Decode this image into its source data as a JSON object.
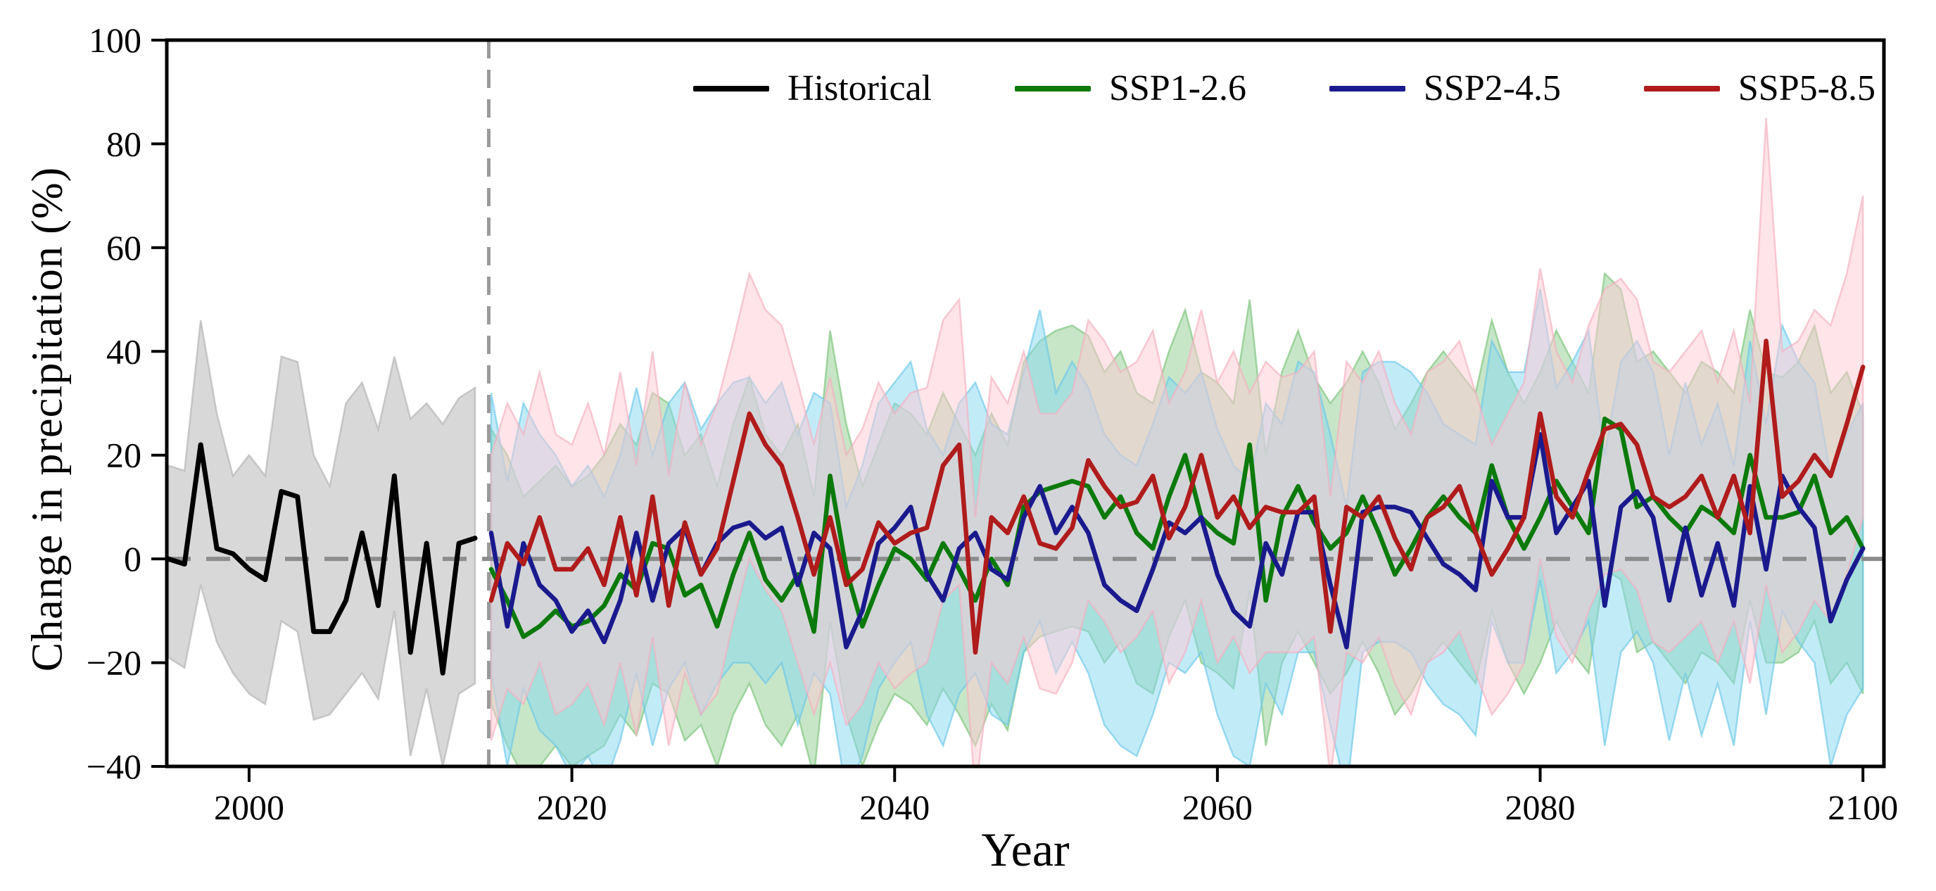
{
  "figure": {
    "ylabel": "Change in precipitation (%)",
    "xlabel": "Year"
  },
  "legend": {
    "items": [
      {
        "label": "Historical",
        "color": "#000000"
      },
      {
        "label": "SSP1-2.6",
        "color": "#0b7a0b"
      },
      {
        "label": "SSP2-4.5",
        "color": "#1a1a8e"
      },
      {
        "label": "SSP5-8.5",
        "color": "#b01b1b"
      }
    ]
  },
  "chart_data": {
    "type": "line",
    "title": "",
    "xlabel": "Year",
    "ylabel": "Change in precipitation (%)",
    "xlim": [
      1994.9,
      2101.3
    ],
    "ylim": [
      -40,
      100
    ],
    "x_ticks": [
      2000,
      2020,
      2040,
      2060,
      2080,
      2100
    ],
    "x_tick_labels": [
      "2000",
      "2020",
      "2040",
      "2060",
      "2080",
      "2100"
    ],
    "y_ticks": [
      100,
      80,
      60,
      40,
      20,
      0,
      -20,
      -40
    ],
    "y_tick_labels": [
      "100",
      "80",
      "60",
      "40",
      "20",
      "0",
      "−20",
      "−40"
    ],
    "grid": false,
    "legend_position": "top center inside",
    "annotations": [
      {
        "type": "vline",
        "x": 2014.85,
        "style": "dashed",
        "color": "#9a9a9a",
        "meaning": "historical / scenario boundary"
      },
      {
        "type": "hline",
        "y": 0,
        "style": "dashed",
        "color": "#8c8c8c",
        "meaning": "zero change reference"
      }
    ],
    "series": [
      {
        "name": "Historical",
        "line_color": "#000000",
        "band_color": "#c8c8c8",
        "years": {
          "start": 1995,
          "end": 2014,
          "step": 1
        },
        "values": [
          0,
          -1,
          22,
          2,
          1,
          -2,
          -4,
          13,
          12,
          -14,
          -14,
          -8,
          5,
          -9,
          16,
          -18,
          3,
          -22,
          3,
          4
        ],
        "band_upper": [
          18,
          17,
          46,
          28,
          16,
          20,
          16,
          39,
          38,
          20,
          14,
          30,
          34,
          25,
          39,
          27,
          30,
          26,
          31,
          33
        ],
        "band_lower": [
          -19,
          -21,
          -5,
          -16,
          -22,
          -26,
          -28,
          -12,
          -14,
          -31,
          -30,
          -26,
          -22,
          -27,
          -10,
          -38,
          -25,
          -40,
          -26,
          -24
        ]
      },
      {
        "name": "SSP1-2.6",
        "line_color": "#0b7a0b",
        "band_color": "#8fce8f",
        "years": {
          "start": 2015,
          "end": 2100,
          "step": 1
        },
        "values": [
          -2,
          -8,
          -15,
          -13,
          -10,
          -13,
          -12,
          -9,
          -3,
          -6,
          3,
          2,
          -7,
          -5,
          -13,
          -3,
          5,
          -4,
          -8,
          -3,
          -14,
          16,
          -2,
          -13,
          -5,
          2,
          0,
          -4,
          3,
          -2,
          -8,
          0,
          -5,
          10,
          13,
          14,
          15,
          14,
          8,
          12,
          5,
          2,
          12,
          20,
          8,
          5,
          3,
          22,
          -8,
          8,
          14,
          7,
          2,
          5,
          12,
          5,
          -3,
          2,
          8,
          12,
          8,
          5,
          18,
          8,
          2,
          8,
          15,
          10,
          5,
          27,
          25,
          10,
          12,
          8,
          5,
          10,
          8,
          5,
          20,
          8,
          8,
          9,
          16,
          5,
          8,
          2
        ],
        "band_upper": [
          25,
          20,
          12,
          15,
          18,
          14,
          16,
          20,
          26,
          22,
          32,
          30,
          20,
          24,
          14,
          26,
          35,
          24,
          20,
          26,
          12,
          44,
          26,
          14,
          22,
          30,
          28,
          24,
          32,
          26,
          20,
          28,
          22,
          38,
          42,
          44,
          45,
          43,
          36,
          40,
          32,
          30,
          40,
          48,
          36,
          34,
          30,
          50,
          20,
          36,
          44,
          35,
          30,
          34,
          40,
          34,
          25,
          30,
          36,
          40,
          36,
          32,
          46,
          36,
          30,
          36,
          44,
          38,
          32,
          55,
          52,
          38,
          40,
          36,
          32,
          38,
          36,
          32,
          48,
          36,
          35,
          38,
          45,
          32,
          36,
          28
        ],
        "band_lower": [
          -28,
          -36,
          -42,
          -40,
          -36,
          -40,
          -38,
          -36,
          -30,
          -34,
          -24,
          -26,
          -35,
          -32,
          -40,
          -30,
          -24,
          -32,
          -36,
          -30,
          -42,
          -12,
          -30,
          -40,
          -32,
          -26,
          -28,
          -32,
          -25,
          -30,
          -36,
          -28,
          -33,
          -18,
          -15,
          -14,
          -13,
          -14,
          -20,
          -16,
          -24,
          -26,
          -15,
          -8,
          -20,
          -22,
          -25,
          -6,
          -36,
          -20,
          -14,
          -20,
          -26,
          -22,
          -16,
          -22,
          -30,
          -26,
          -20,
          -16,
          -20,
          -24,
          -10,
          -20,
          -26,
          -20,
          -12,
          -18,
          -22,
          -2,
          -4,
          -18,
          -16,
          -20,
          -24,
          -18,
          -20,
          -24,
          -8,
          -20,
          -20,
          -18,
          -12,
          -24,
          -20,
          -26
        ]
      },
      {
        "name": "SSP2-4.5",
        "line_color": "#1a1a8e",
        "band_color": "#85d7f2",
        "years": {
          "start": 2015,
          "end": 2100,
          "step": 1
        },
        "values": [
          5,
          -13,
          3,
          -5,
          -8,
          -14,
          -10,
          -16,
          -8,
          5,
          -8,
          3,
          6,
          -3,
          3,
          6,
          7,
          4,
          6,
          -5,
          5,
          2,
          -17,
          -10,
          3,
          6,
          10,
          -3,
          -8,
          2,
          5,
          -2,
          -4,
          8,
          14,
          5,
          10,
          5,
          -5,
          -8,
          -10,
          -2,
          7,
          5,
          8,
          -3,
          -10,
          -13,
          3,
          -3,
          9,
          9,
          -5,
          -17,
          9,
          10,
          10,
          9,
          4,
          -1,
          -3,
          -6,
          15,
          8,
          8,
          24,
          5,
          10,
          15,
          -9,
          10,
          13,
          8,
          -8,
          6,
          -7,
          3,
          -9,
          14,
          -2,
          16,
          10,
          6,
          -12,
          -4,
          2
        ],
        "band_upper": [
          32,
          15,
          30,
          24,
          20,
          14,
          18,
          12,
          20,
          33,
          20,
          30,
          34,
          25,
          30,
          34,
          35,
          30,
          34,
          24,
          32,
          30,
          10,
          18,
          30,
          34,
          38,
          25,
          20,
          30,
          34,
          26,
          24,
          36,
          48,
          32,
          38,
          33,
          24,
          20,
          18,
          26,
          35,
          32,
          36,
          25,
          18,
          15,
          30,
          26,
          38,
          36,
          24,
          10,
          36,
          38,
          38,
          36,
          32,
          26,
          24,
          22,
          42,
          36,
          36,
          52,
          33,
          38,
          44,
          20,
          38,
          42,
          36,
          20,
          34,
          22,
          30,
          18,
          42,
          26,
          45,
          38,
          34,
          16,
          24,
          30
        ],
        "band_lower": [
          -22,
          -40,
          -25,
          -33,
          -36,
          -42,
          -38,
          -44,
          -35,
          -22,
          -36,
          -25,
          -20,
          -30,
          -24,
          -20,
          -20,
          -24,
          -20,
          -32,
          -22,
          -26,
          -45,
          -38,
          -25,
          -20,
          -16,
          -30,
          -36,
          -26,
          -22,
          -30,
          -32,
          -18,
          -12,
          -22,
          -16,
          -22,
          -32,
          -36,
          -38,
          -30,
          -20,
          -22,
          -18,
          -30,
          -38,
          -40,
          -24,
          -30,
          -18,
          -18,
          -32,
          -45,
          -18,
          -16,
          -16,
          -18,
          -24,
          -28,
          -30,
          -34,
          -12,
          -20,
          -20,
          -4,
          -22,
          -18,
          -12,
          -36,
          -18,
          -14,
          -20,
          -35,
          -22,
          -34,
          -24,
          -36,
          -12,
          -30,
          -10,
          -16,
          -20,
          -40,
          -30,
          -25
        ]
      },
      {
        "name": "SSP5-8.5",
        "line_color": "#b01b1b",
        "band_color": "#ffc9d4",
        "years": {
          "start": 2015,
          "end": 2100,
          "step": 1
        },
        "values": [
          -8,
          3,
          -1,
          8,
          -2,
          -2,
          2,
          -5,
          8,
          -7,
          12,
          -9,
          7,
          -3,
          2,
          15,
          28,
          22,
          18,
          8,
          -3,
          8,
          -5,
          -2,
          7,
          3,
          5,
          6,
          18,
          22,
          -18,
          8,
          5,
          12,
          3,
          2,
          6,
          19,
          14,
          10,
          11,
          16,
          4,
          10,
          20,
          8,
          12,
          6,
          10,
          9,
          9,
          12,
          -14,
          10,
          8,
          12,
          4,
          -2,
          8,
          10,
          14,
          5,
          -3,
          2,
          8,
          28,
          12,
          8,
          17,
          25,
          26,
          22,
          12,
          10,
          12,
          16,
          8,
          16,
          5,
          42,
          12,
          15,
          20,
          16,
          26,
          37
        ],
        "band_upper": [
          20,
          30,
          24,
          36,
          24,
          22,
          30,
          20,
          36,
          18,
          40,
          16,
          34,
          22,
          30,
          42,
          55,
          48,
          45,
          34,
          22,
          35,
          20,
          25,
          34,
          28,
          32,
          33,
          46,
          50,
          8,
          35,
          30,
          40,
          28,
          28,
          32,
          46,
          42,
          36,
          38,
          44,
          30,
          36,
          48,
          34,
          40,
          32,
          38,
          35,
          36,
          40,
          12,
          38,
          34,
          40,
          30,
          24,
          36,
          38,
          42,
          32,
          22,
          28,
          34,
          56,
          40,
          34,
          45,
          52,
          54,
          50,
          38,
          36,
          40,
          44,
          34,
          44,
          30,
          85,
          40,
          42,
          48,
          45,
          55,
          70
        ],
        "band_lower": [
          -35,
          -25,
          -28,
          -20,
          -30,
          -28,
          -24,
          -32,
          -20,
          -34,
          -15,
          -36,
          -22,
          -30,
          -26,
          -12,
          0,
          -6,
          -10,
          -20,
          -30,
          -20,
          -32,
          -28,
          -20,
          -25,
          -22,
          -20,
          -8,
          -5,
          -45,
          -20,
          -24,
          -15,
          -25,
          -26,
          -20,
          -8,
          -12,
          -18,
          -15,
          -10,
          -24,
          -18,
          -8,
          -20,
          -15,
          -22,
          -18,
          -18,
          -18,
          -15,
          -42,
          -18,
          -20,
          -15,
          -24,
          -30,
          -20,
          -18,
          -14,
          -22,
          -30,
          -26,
          -20,
          0,
          -15,
          -20,
          -10,
          -3,
          -2,
          -6,
          -16,
          -18,
          -15,
          -12,
          -20,
          -12,
          -24,
          -5,
          -18,
          -14,
          -8,
          -12,
          -3,
          8
        ]
      }
    ]
  }
}
